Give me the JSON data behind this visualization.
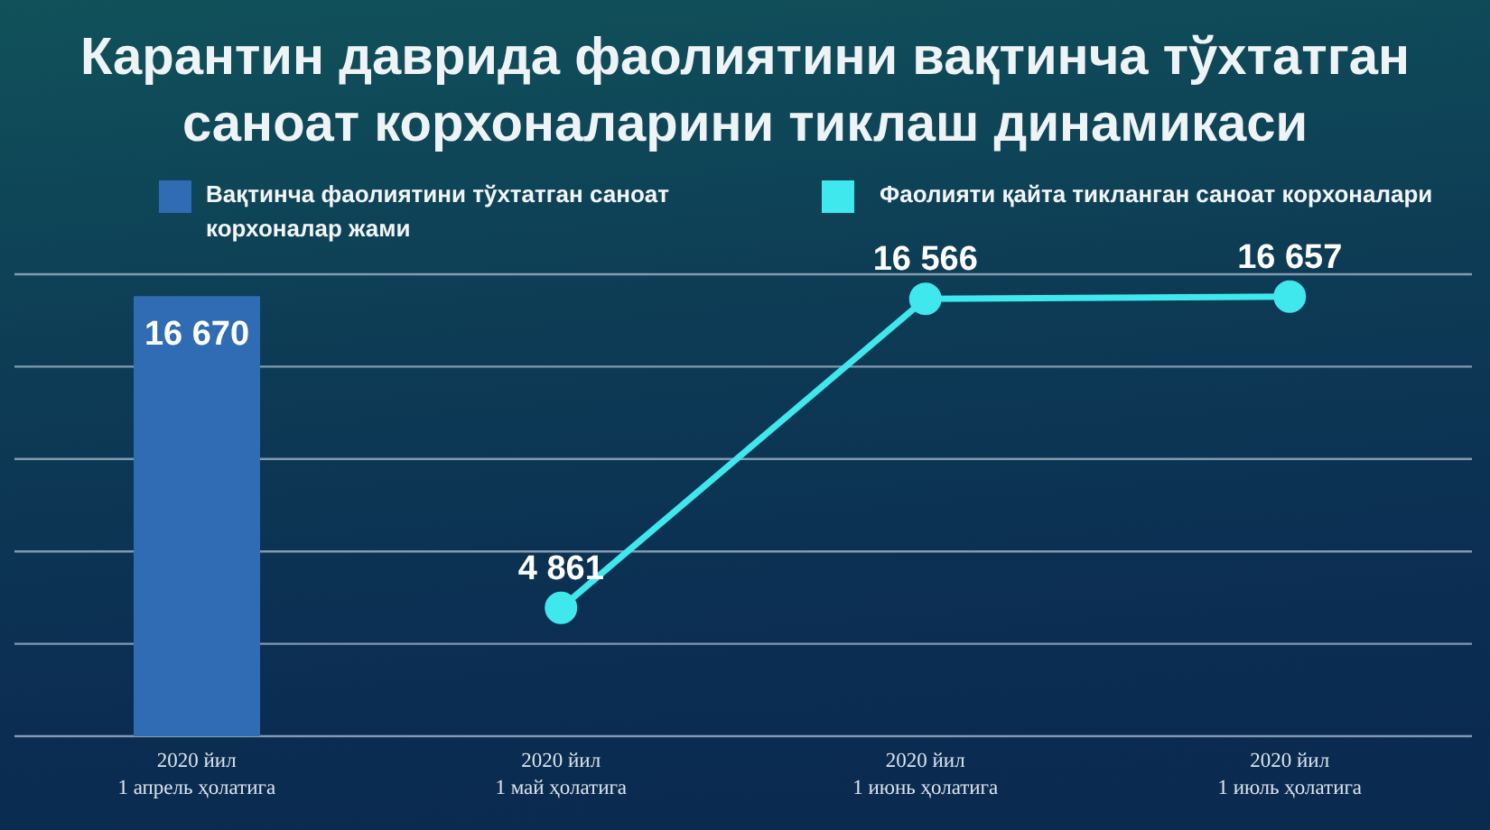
{
  "chart_data": {
    "type": "bar",
    "title": "Карантин даврида фаолиятини вақтинча тўхтатган саноат корхоналарини тиклаш динамикаси",
    "categories": [
      "2020 йил\n1 апрель ҳолатига",
      "2020 йил\n1 май ҳолатига",
      "2020 йил\n1 июнь ҳолатига",
      "2020 йил\n1 июль ҳолатига"
    ],
    "series": [
      {
        "name": "Вақтинча фаолиятини тўхтатган саноат корхоналар жами",
        "color": "#2f6cb3",
        "values": [
          16670,
          null,
          null,
          null
        ],
        "value_labels": [
          "16 670",
          null,
          null,
          null
        ]
      },
      {
        "name": "Фаолияти қайта тикланган саноат корхоналари",
        "type": "line",
        "color": "#3ee8ec",
        "values": [
          null,
          4861,
          16566,
          16657
        ],
        "value_labels": [
          null,
          "4 861",
          "16 566",
          "16 657"
        ]
      }
    ],
    "tick_labels": "x",
    "grid": "y",
    "legend": "top",
    "marker": "circle"
  }
}
